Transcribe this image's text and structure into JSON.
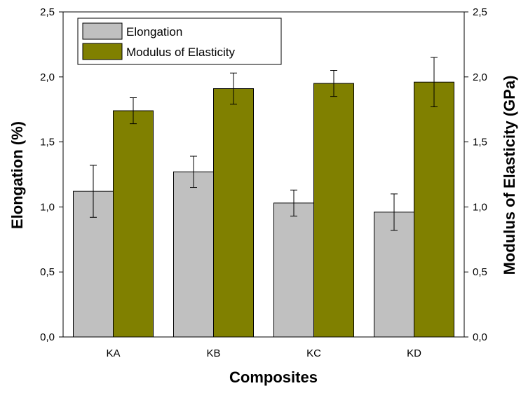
{
  "chart_data": {
    "type": "bar",
    "categories": [
      "KA",
      "KB",
      "KC",
      "KD"
    ],
    "series": [
      {
        "name": "Elongation",
        "axis": "left",
        "color": "#c0c0c0",
        "values": [
          1.12,
          1.27,
          1.03,
          0.96
        ],
        "errors": [
          0.2,
          0.12,
          0.1,
          0.14
        ]
      },
      {
        "name": "Modulus of Elasticity",
        "axis": "right",
        "color": "#808000",
        "values": [
          1.74,
          1.91,
          1.95,
          1.96
        ],
        "errors": [
          0.1,
          0.12,
          0.1,
          0.19
        ]
      }
    ],
    "xlabel": "Composites",
    "ylabel": "Elongation (%)",
    "ylabel_right": "Modulus of Elasticity (GPa)",
    "ylim": [
      0,
      2.5
    ],
    "ylim_right": [
      0,
      2.5
    ],
    "yticks": [
      "0,0",
      "0,5",
      "1,0",
      "1,5",
      "2,0",
      "2,5"
    ],
    "yticks_right": [
      "0,0",
      "0,5",
      "1,0",
      "1,5",
      "2,0",
      "2,5"
    ],
    "legend": "top-left",
    "grid": false
  }
}
